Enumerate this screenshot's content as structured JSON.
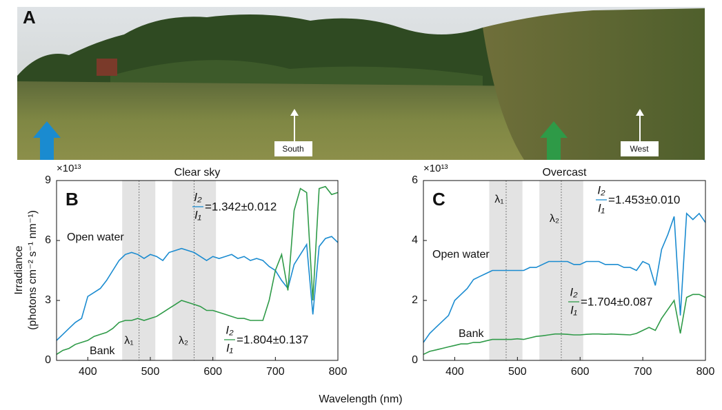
{
  "panel_a": {
    "label": "A",
    "directions": [
      "South",
      "West"
    ]
  },
  "shared": {
    "xlabel": "Wavelength (nm)",
    "ylabel": [
      "Irradiance",
      "(photons cm⁻² s⁻¹ nm⁻¹)"
    ]
  },
  "chart_data": [
    {
      "type": "line",
      "label": "B",
      "title": "Clear sky",
      "multiplier": "×10¹³",
      "x": [
        350,
        360,
        370,
        380,
        390,
        400,
        410,
        420,
        430,
        440,
        450,
        460,
        470,
        480,
        490,
        500,
        510,
        520,
        530,
        540,
        550,
        560,
        570,
        580,
        590,
        600,
        610,
        620,
        630,
        640,
        650,
        660,
        670,
        680,
        690,
        700,
        710,
        720,
        730,
        740,
        750,
        760,
        770,
        780,
        790,
        800
      ],
      "series": [
        {
          "name": "Open water",
          "color": "#1a8bd0",
          "values": [
            1.0,
            1.3,
            1.6,
            1.9,
            2.1,
            3.2,
            3.4,
            3.6,
            4.0,
            4.5,
            5.0,
            5.3,
            5.4,
            5.3,
            5.1,
            5.3,
            5.2,
            5.0,
            5.4,
            5.5,
            5.6,
            5.5,
            5.4,
            5.2,
            5.0,
            5.2,
            5.1,
            5.2,
            5.3,
            5.1,
            5.2,
            5.0,
            5.1,
            5.0,
            4.7,
            4.5,
            4.0,
            3.6,
            4.8,
            5.3,
            5.8,
            2.3,
            5.7,
            6.1,
            6.2,
            5.9
          ]
        },
        {
          "name": "Bank",
          "color": "#2e9a47",
          "values": [
            0.3,
            0.5,
            0.6,
            0.8,
            0.9,
            1.0,
            1.2,
            1.3,
            1.4,
            1.6,
            1.9,
            2.0,
            2.0,
            2.1,
            2.0,
            2.1,
            2.2,
            2.4,
            2.6,
            2.8,
            3.0,
            2.9,
            2.8,
            2.7,
            2.5,
            2.5,
            2.4,
            2.3,
            2.2,
            2.1,
            2.1,
            2.0,
            2.0,
            2.0,
            3.0,
            4.5,
            5.3,
            3.5,
            7.5,
            8.6,
            8.4,
            3.0,
            8.6,
            8.7,
            8.3,
            8.4
          ]
        }
      ],
      "xlim": [
        350,
        800
      ],
      "xticks": [
        400,
        500,
        600,
        700,
        800
      ],
      "ylim": [
        0,
        9
      ],
      "yticks": [
        0,
        3,
        6,
        9
      ],
      "bands": [
        {
          "label": "λ₁",
          "x0": 455,
          "x1": 508,
          "xc": 482
        },
        {
          "label": "λ₂",
          "x0": 535,
          "x1": 605,
          "xc": 570
        }
      ],
      "ratios": [
        {
          "series": 0,
          "num": "I₂",
          "den": "I₁",
          "text": "=1.342±0.012"
        },
        {
          "series": 1,
          "num": "I₂",
          "den": "I₁",
          "text": "=1.804±0.137"
        }
      ]
    },
    {
      "type": "line",
      "label": "C",
      "title": "Overcast",
      "multiplier": "×10¹³",
      "x": [
        350,
        360,
        370,
        380,
        390,
        400,
        410,
        420,
        430,
        440,
        450,
        460,
        470,
        480,
        490,
        500,
        510,
        520,
        530,
        540,
        550,
        560,
        570,
        580,
        590,
        600,
        610,
        620,
        630,
        640,
        650,
        660,
        670,
        680,
        690,
        700,
        710,
        720,
        730,
        740,
        750,
        760,
        770,
        780,
        790,
        800
      ],
      "series": [
        {
          "name": "Open water",
          "color": "#1a8bd0",
          "values": [
            0.6,
            0.9,
            1.1,
            1.3,
            1.5,
            2.0,
            2.2,
            2.4,
            2.7,
            2.8,
            2.9,
            3.0,
            3.0,
            3.0,
            3.0,
            3.0,
            3.0,
            3.1,
            3.1,
            3.2,
            3.3,
            3.3,
            3.3,
            3.3,
            3.2,
            3.2,
            3.3,
            3.3,
            3.3,
            3.2,
            3.2,
            3.2,
            3.1,
            3.1,
            3.0,
            3.3,
            3.2,
            2.5,
            3.7,
            4.2,
            4.8,
            1.5,
            4.9,
            4.7,
            4.9,
            4.6
          ]
        },
        {
          "name": "Bank",
          "color": "#2e9a47",
          "values": [
            0.2,
            0.3,
            0.35,
            0.4,
            0.45,
            0.5,
            0.55,
            0.55,
            0.6,
            0.6,
            0.65,
            0.7,
            0.7,
            0.7,
            0.7,
            0.72,
            0.7,
            0.75,
            0.8,
            0.82,
            0.85,
            0.88,
            0.88,
            0.87,
            0.85,
            0.85,
            0.87,
            0.88,
            0.88,
            0.87,
            0.88,
            0.87,
            0.86,
            0.85,
            0.9,
            1.0,
            1.1,
            1.0,
            1.4,
            1.7,
            2.0,
            0.9,
            2.1,
            2.2,
            2.2,
            2.1
          ]
        }
      ],
      "xlim": [
        350,
        800
      ],
      "xticks": [
        400,
        500,
        600,
        700,
        800
      ],
      "ylim": [
        0,
        6
      ],
      "yticks": [
        0,
        2,
        4,
        6
      ],
      "bands": [
        {
          "label": "λ₁",
          "x0": 455,
          "x1": 508,
          "xc": 482
        },
        {
          "label": "λ₂",
          "x0": 535,
          "x1": 605,
          "xc": 570
        }
      ],
      "ratios": [
        {
          "series": 0,
          "num": "I₂",
          "den": "I₁",
          "text": "=1.453±0.010"
        },
        {
          "series": 1,
          "num": "I₂",
          "den": "I₁",
          "text": "=1.704±0.087"
        }
      ]
    }
  ]
}
